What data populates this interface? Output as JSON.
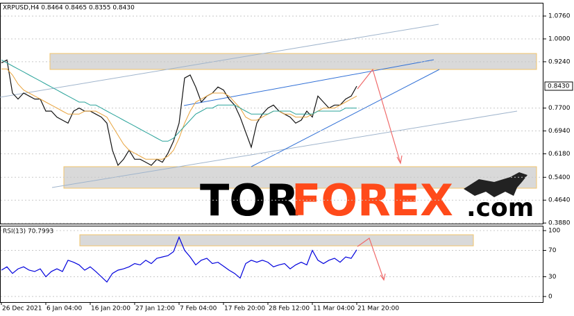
{
  "chart_data": [
    {
      "type": "line",
      "title": "XRPUSD,H4  0.8464 0.8465 0.8355 0.8430",
      "ylim": [
        0.386,
        1.12
      ],
      "yticks": [
        {
          "value": 1.076,
          "label": "1.0760"
        },
        {
          "value": 1.0,
          "label": "1.0000"
        },
        {
          "value": 0.924,
          "label": "0.9240"
        },
        {
          "value": 0.77,
          "label": "0.7700"
        },
        {
          "value": 0.694,
          "label": "0.6940"
        },
        {
          "value": 0.618,
          "label": "0.6180"
        },
        {
          "value": 0.54,
          "label": "0.5400"
        },
        {
          "value": 0.464,
          "label": "0.4640"
        },
        {
          "value": 0.388,
          "label": "0.3880"
        }
      ],
      "current_price": {
        "value": 0.843,
        "label": "0.8430"
      },
      "grid": true,
      "series": [
        {
          "color": "#111111",
          "values": [
            0.92,
            0.93,
            0.82,
            0.8,
            0.82,
            0.81,
            0.8,
            0.8,
            0.76,
            0.76,
            0.74,
            0.73,
            0.72,
            0.76,
            0.77,
            0.76,
            0.76,
            0.75,
            0.74,
            0.72,
            0.63,
            0.58,
            0.6,
            0.63,
            0.6,
            0.6,
            0.59,
            0.58,
            0.6,
            0.59,
            0.62,
            0.66,
            0.72,
            0.87,
            0.88,
            0.84,
            0.79,
            0.81,
            0.82,
            0.84,
            0.83,
            0.8,
            0.78,
            0.74,
            0.69,
            0.64,
            0.72,
            0.75,
            0.77,
            0.78,
            0.76,
            0.75,
            0.74,
            0.72,
            0.73,
            0.76,
            0.74,
            0.81,
            0.79,
            0.77,
            0.78,
            0.78,
            0.8,
            0.81,
            0.843
          ]
        },
        {
          "color": "#e8a33c",
          "values": [
            0.9,
            0.9,
            0.88,
            0.85,
            0.83,
            0.82,
            0.81,
            0.8,
            0.79,
            0.78,
            0.77,
            0.76,
            0.75,
            0.75,
            0.75,
            0.76,
            0.76,
            0.76,
            0.75,
            0.74,
            0.71,
            0.68,
            0.65,
            0.63,
            0.62,
            0.61,
            0.6,
            0.6,
            0.6,
            0.6,
            0.61,
            0.63,
            0.67,
            0.72,
            0.76,
            0.79,
            0.8,
            0.81,
            0.82,
            0.82,
            0.82,
            0.81,
            0.79,
            0.77,
            0.74,
            0.73,
            0.73,
            0.74,
            0.75,
            0.76,
            0.76,
            0.75,
            0.75,
            0.74,
            0.74,
            0.74,
            0.75,
            0.76,
            0.77,
            0.77,
            0.77,
            0.78,
            0.79,
            0.8,
            0.81
          ]
        },
        {
          "color": "#2aa39a",
          "values": [
            0.93,
            0.92,
            0.91,
            0.9,
            0.89,
            0.88,
            0.87,
            0.86,
            0.85,
            0.84,
            0.83,
            0.82,
            0.81,
            0.8,
            0.79,
            0.79,
            0.78,
            0.78,
            0.77,
            0.76,
            0.75,
            0.74,
            0.73,
            0.72,
            0.71,
            0.7,
            0.69,
            0.68,
            0.67,
            0.66,
            0.66,
            0.67,
            0.69,
            0.71,
            0.73,
            0.75,
            0.76,
            0.77,
            0.77,
            0.78,
            0.78,
            0.78,
            0.78,
            0.77,
            0.76,
            0.75,
            0.75,
            0.75,
            0.75,
            0.76,
            0.76,
            0.76,
            0.76,
            0.75,
            0.75,
            0.75,
            0.75,
            0.76,
            0.76,
            0.76,
            0.76,
            0.76,
            0.77,
            0.77,
            0.77
          ]
        }
      ]
    },
    {
      "type": "line",
      "title": "RSI(13) 70.7993",
      "ylim": [
        -8.5,
        107.4
      ],
      "yticks": [
        0,
        30,
        70,
        100
      ],
      "grid": true,
      "categories": [
        "26 Dec 2021",
        null,
        null,
        null,
        null,
        null,
        null,
        null,
        "6 Jan 04:00",
        null,
        null,
        null,
        null,
        null,
        null,
        null,
        "16 Jan 20:00",
        null,
        null,
        null,
        null,
        null,
        null,
        null,
        "27 Jan 12:00",
        null,
        null,
        null,
        null,
        null,
        null,
        null,
        "7 Feb 04:00",
        null,
        null,
        null,
        null,
        null,
        null,
        null,
        "17 Feb 20:00",
        null,
        null,
        null,
        null,
        null,
        null,
        null,
        "28 Feb 12:00",
        null,
        null,
        null,
        null,
        null,
        null,
        null,
        "11 Mar 04:00",
        null,
        null,
        null,
        null,
        null,
        null,
        null,
        "21 Mar 20:00"
      ],
      "series": [
        {
          "color": "#0000dd",
          "values": [
            40,
            45,
            35,
            42,
            45,
            40,
            38,
            42,
            30,
            38,
            42,
            38,
            55,
            52,
            48,
            40,
            45,
            38,
            30,
            22,
            35,
            40,
            42,
            45,
            50,
            48,
            55,
            50,
            58,
            60,
            62,
            68,
            90,
            70,
            60,
            48,
            55,
            58,
            50,
            52,
            46,
            40,
            35,
            28,
            50,
            55,
            52,
            55,
            52,
            45,
            48,
            50,
            42,
            48,
            52,
            48,
            70,
            55,
            50,
            55,
            58,
            52,
            60,
            58,
            70.7993
          ]
        }
      ]
    }
  ],
  "watermark": {
    "part1": "TOR",
    "part2": "FOREX",
    "part3": ".com"
  }
}
